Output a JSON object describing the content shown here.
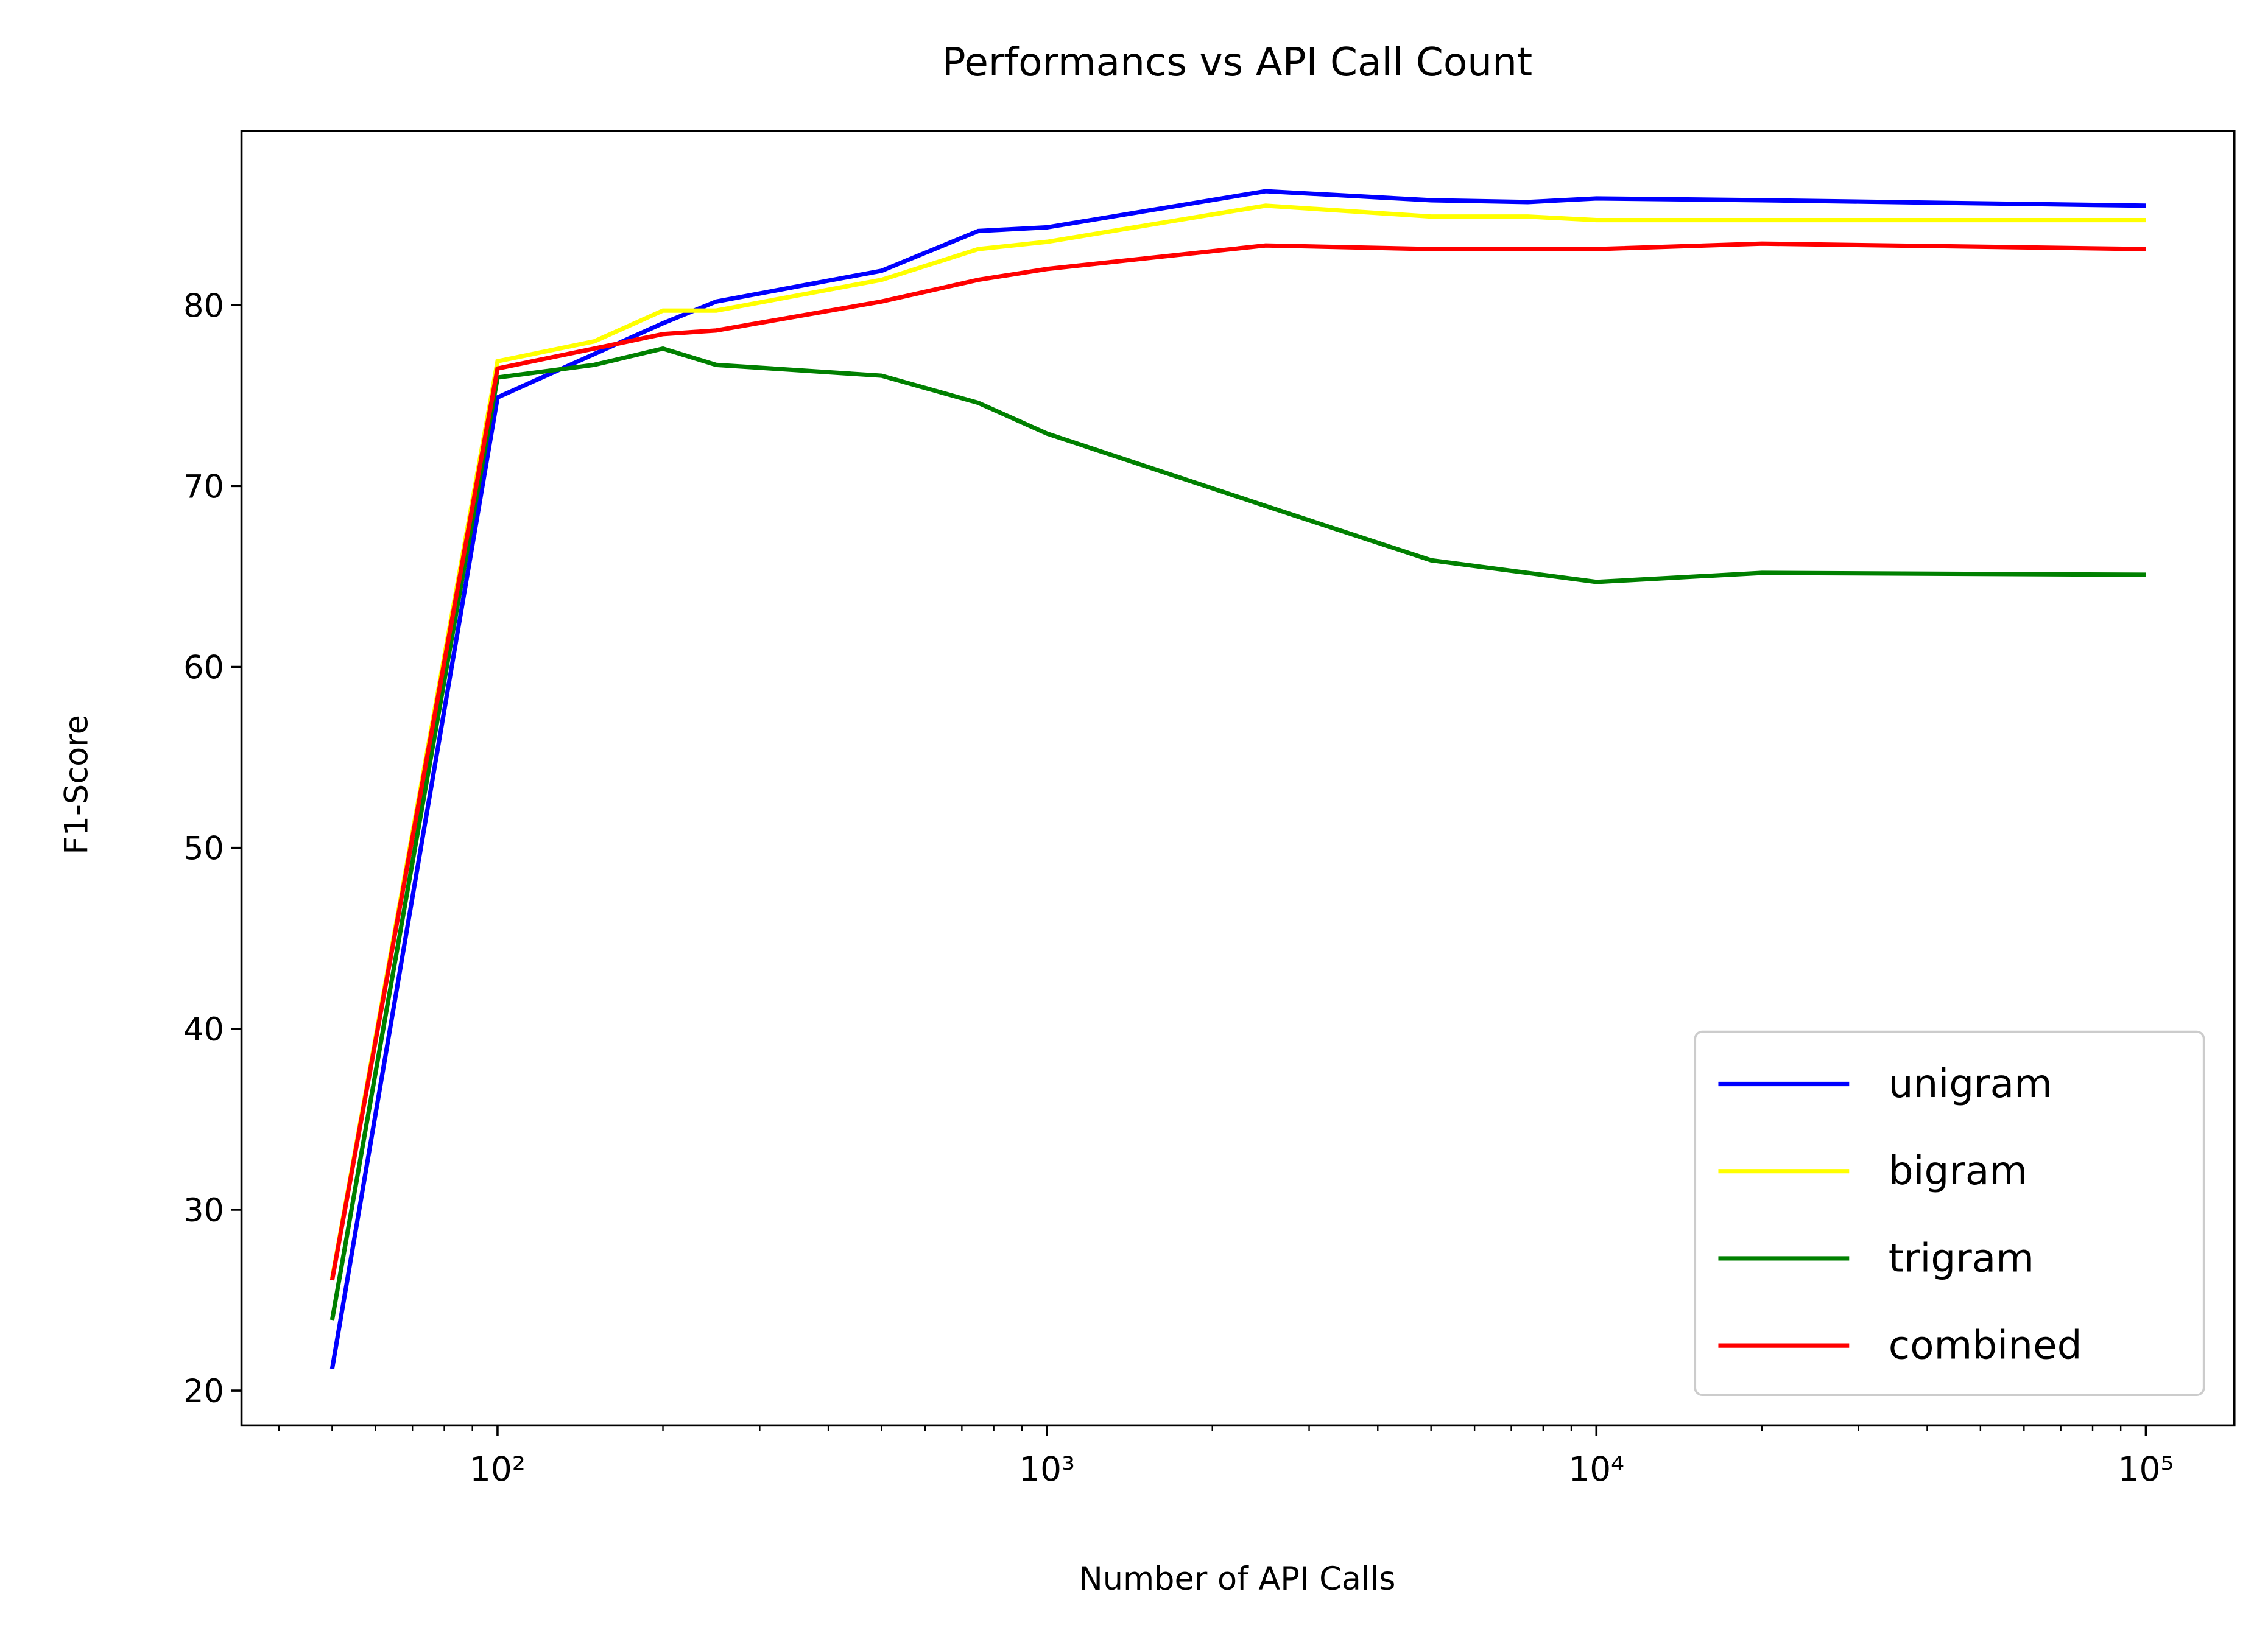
{
  "chart_data": {
    "type": "line",
    "title": "Performancs vs API Call Count",
    "x_label": "Number of API Calls",
    "y_label": "F1-Score",
    "x": [
      50,
      100,
      150,
      200,
      250,
      500,
      750,
      1000,
      2500,
      5000,
      7500,
      10000,
      20000,
      100000
    ],
    "series": [
      {
        "name": "unigram",
        "color": "#0000ff",
        "values": [
          21.2,
          74.9,
          77.3,
          79.0,
          80.2,
          81.9,
          84.1,
          84.3,
          86.3,
          85.8,
          85.7,
          85.9,
          85.8,
          85.5
        ]
      },
      {
        "name": "bigram",
        "color": "#ffff00",
        "values": [
          26.2,
          76.9,
          78.0,
          79.7,
          79.7,
          81.4,
          83.1,
          83.5,
          85.5,
          84.9,
          84.9,
          84.7,
          84.7,
          84.7
        ]
      },
      {
        "name": "trigram",
        "color": "#008000",
        "values": [
          23.9,
          76.0,
          76.7,
          77.6,
          76.7,
          76.1,
          74.6,
          72.9,
          68.9,
          65.9,
          65.2,
          64.7,
          65.2,
          65.1
        ]
      },
      {
        "name": "combined",
        "color": "#ff0000",
        "values": [
          26.1,
          76.5,
          77.6,
          78.4,
          78.6,
          80.2,
          81.4,
          82.0,
          83.3,
          83.1,
          83.1,
          83.1,
          83.4,
          83.1
        ]
      }
    ],
    "xscale": "log",
    "xlim": [
      34.2,
      144900
    ],
    "ylim": [
      18.07,
      89.64
    ],
    "xticks": [
      {
        "value": 100,
        "label": "10²"
      },
      {
        "value": 1000,
        "label": "10³"
      },
      {
        "value": 10000,
        "label": "10⁴"
      },
      {
        "value": 100000,
        "label": "10⁵"
      }
    ],
    "xminorticks": [
      40,
      50,
      60,
      70,
      80,
      90,
      200,
      300,
      400,
      500,
      600,
      700,
      800,
      900,
      2000,
      3000,
      4000,
      5000,
      6000,
      7000,
      8000,
      9000,
      20000,
      30000,
      40000,
      50000,
      60000,
      70000,
      80000,
      90000
    ],
    "yticks": [
      20,
      30,
      40,
      50,
      60,
      70,
      80
    ],
    "grid": false,
    "legend": "lower right"
  }
}
